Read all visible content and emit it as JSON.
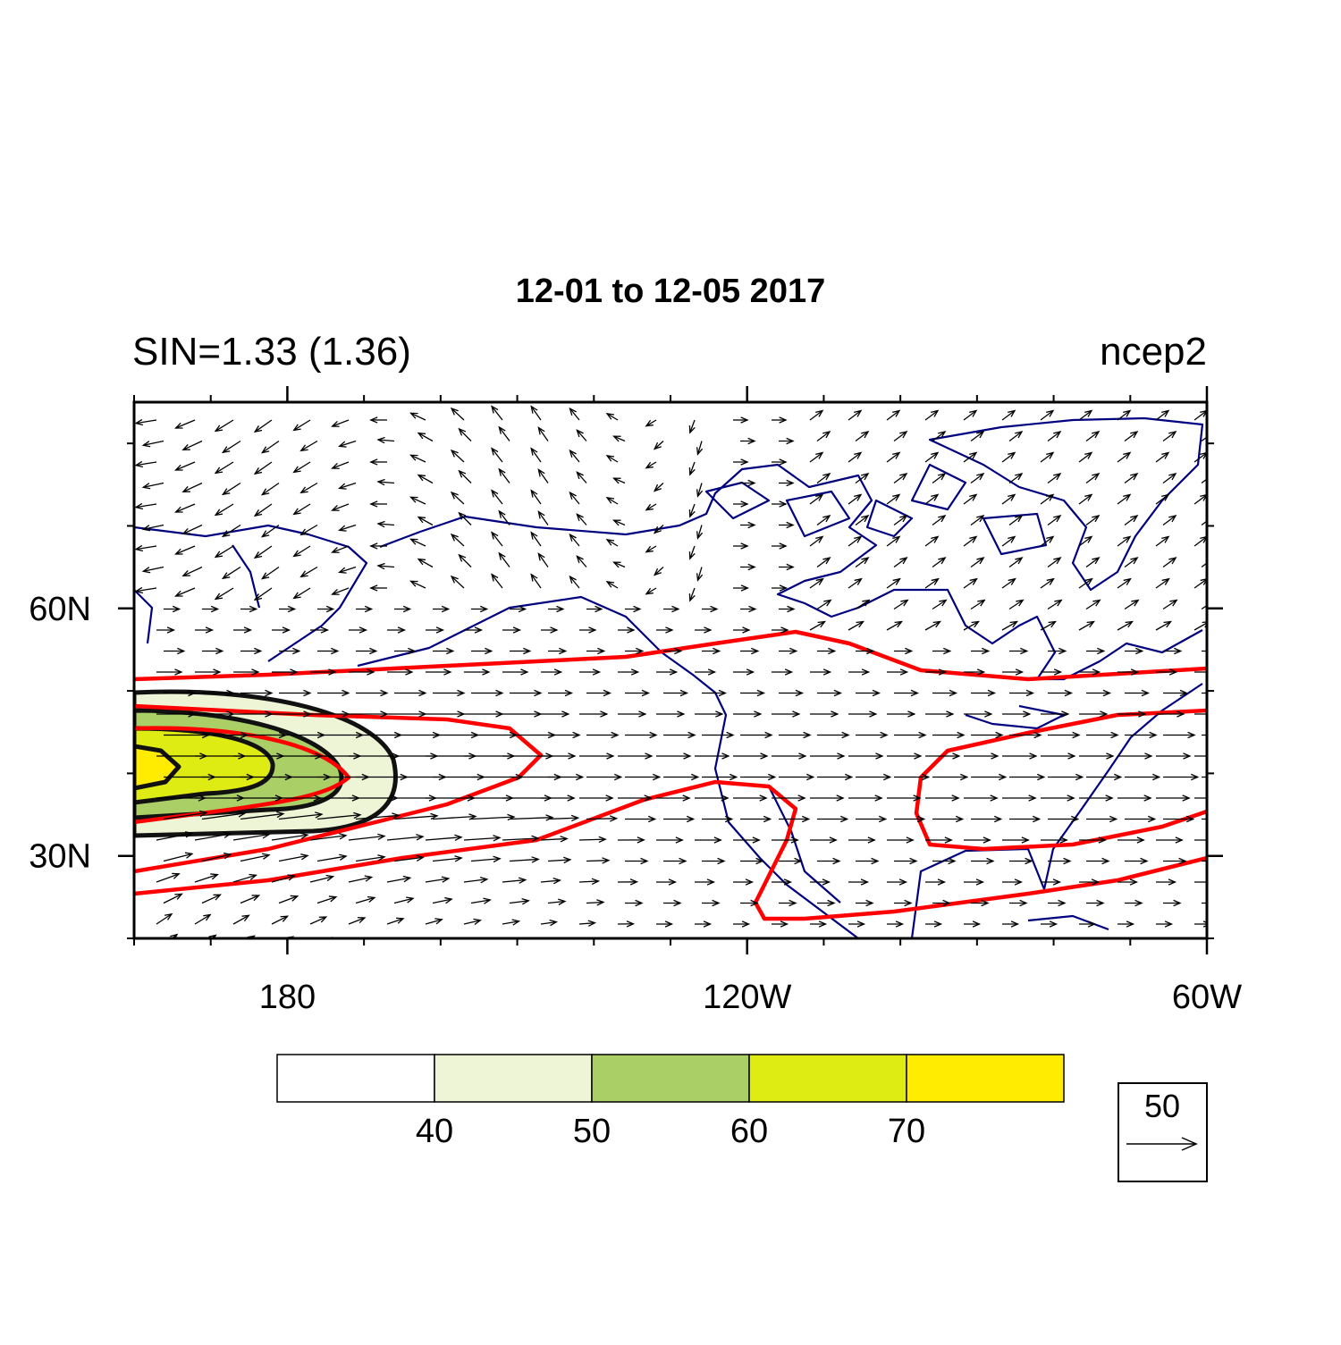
{
  "map": {
    "title": "12-01 to 12-05 2017",
    "left_string": "SIN=1.33 (1.36)",
    "right_string": "ncep2",
    "lonlim": [
      160,
      300
    ],
    "latlim": [
      20,
      85
    ],
    "lon_ticks": [
      {
        "value": 180,
        "label": "180"
      },
      {
        "value": 240,
        "label": "120W"
      },
      {
        "value": 300,
        "label": "60W"
      }
    ],
    "lat_ticks": [
      {
        "value": 30,
        "label": "30N"
      },
      {
        "value": 60,
        "label": "60N"
      }
    ],
    "colorbar": {
      "levels": [
        40,
        50,
        60,
        70
      ],
      "colors": [
        "#ffffff",
        "#eef5d6",
        "#a9cf66",
        "#dfec14",
        "#ffec00"
      ]
    },
    "reference_vector": {
      "label": "50"
    }
  }
}
